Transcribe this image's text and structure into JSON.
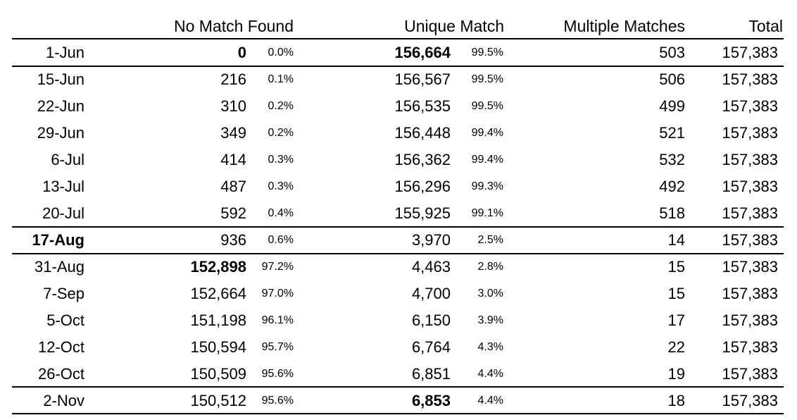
{
  "table": {
    "headers": {
      "date": "",
      "no_match": "No Match Found",
      "unique": "Unique Match",
      "multiple": "Multiple Matches",
      "total": "Total"
    },
    "rows": [
      {
        "date": "1-Jun",
        "no_match": "0",
        "no_match_pct": "0.0%",
        "unique": "156,664",
        "unique_pct": "99.5%",
        "multiple": "503",
        "total": "157,383",
        "bold": [
          "no_match",
          "unique"
        ]
      },
      {
        "date": "15-Jun",
        "no_match": "216",
        "no_match_pct": "0.1%",
        "unique": "156,567",
        "unique_pct": "99.5%",
        "multiple": "506",
        "total": "157,383",
        "bold": []
      },
      {
        "date": "22-Jun",
        "no_match": "310",
        "no_match_pct": "0.2%",
        "unique": "156,535",
        "unique_pct": "99.5%",
        "multiple": "499",
        "total": "157,383",
        "bold": []
      },
      {
        "date": "29-Jun",
        "no_match": "349",
        "no_match_pct": "0.2%",
        "unique": "156,448",
        "unique_pct": "99.4%",
        "multiple": "521",
        "total": "157,383",
        "bold": []
      },
      {
        "date": "6-Jul",
        "no_match": "414",
        "no_match_pct": "0.3%",
        "unique": "156,362",
        "unique_pct": "99.4%",
        "multiple": "532",
        "total": "157,383",
        "bold": []
      },
      {
        "date": "13-Jul",
        "no_match": "487",
        "no_match_pct": "0.3%",
        "unique": "156,296",
        "unique_pct": "99.3%",
        "multiple": "492",
        "total": "157,383",
        "bold": []
      },
      {
        "date": "20-Jul",
        "no_match": "592",
        "no_match_pct": "0.4%",
        "unique": "155,925",
        "unique_pct": "99.1%",
        "multiple": "518",
        "total": "157,383",
        "bold": []
      },
      {
        "date": "17-Aug",
        "no_match": "936",
        "no_match_pct": "0.6%",
        "unique": "3,970",
        "unique_pct": "2.5%",
        "multiple": "14",
        "total": "157,383",
        "bold": [
          "date"
        ]
      },
      {
        "date": "31-Aug",
        "no_match": "152,898",
        "no_match_pct": "97.2%",
        "unique": "4,463",
        "unique_pct": "2.8%",
        "multiple": "15",
        "total": "157,383",
        "bold": [
          "no_match"
        ]
      },
      {
        "date": "7-Sep",
        "no_match": "152,664",
        "no_match_pct": "97.0%",
        "unique": "4,700",
        "unique_pct": "3.0%",
        "multiple": "15",
        "total": "157,383",
        "bold": []
      },
      {
        "date": "5-Oct",
        "no_match": "151,198",
        "no_match_pct": "96.1%",
        "unique": "6,150",
        "unique_pct": "3.9%",
        "multiple": "17",
        "total": "157,383",
        "bold": []
      },
      {
        "date": "12-Oct",
        "no_match": "150,594",
        "no_match_pct": "95.7%",
        "unique": "6,764",
        "unique_pct": "4.3%",
        "multiple": "22",
        "total": "157,383",
        "bold": []
      },
      {
        "date": "26-Oct",
        "no_match": "150,509",
        "no_match_pct": "95.6%",
        "unique": "6,851",
        "unique_pct": "4.4%",
        "multiple": "19",
        "total": "157,383",
        "bold": []
      },
      {
        "date": "2-Nov",
        "no_match": "150,512",
        "no_match_pct": "95.6%",
        "unique": "6,853",
        "unique_pct": "4.4%",
        "multiple": "18",
        "total": "157,383",
        "bold": [
          "unique"
        ]
      }
    ]
  }
}
